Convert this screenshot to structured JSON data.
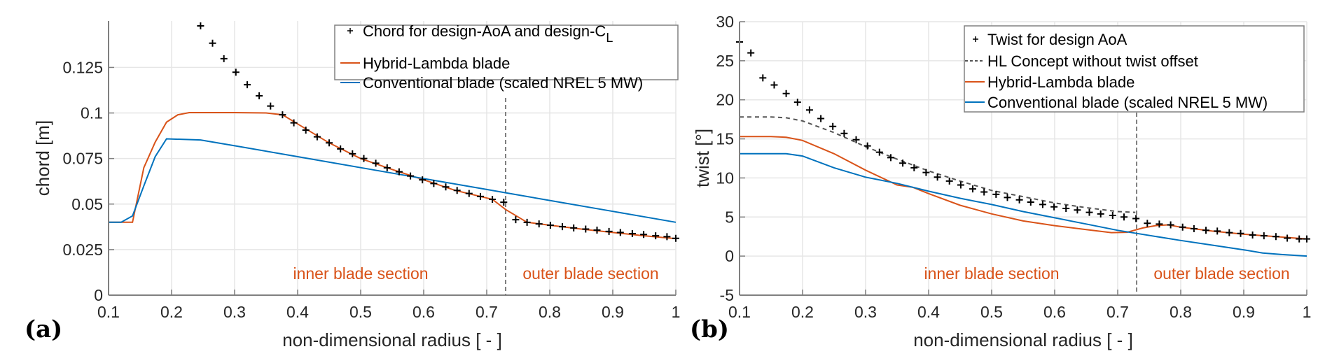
{
  "chart_data": [
    {
      "type": "line",
      "panel_label": "(a)",
      "title": "",
      "xlabel": "non-dimensional radius [ - ]",
      "ylabel": "chord [m]",
      "xlim": [
        0.1,
        1
      ],
      "ylim": [
        0,
        0.1505
      ],
      "xticks": [
        "0.1",
        "0.2",
        "0.3",
        "0.4",
        "0.5",
        "0.6",
        "0.7",
        "0.8",
        "0.9",
        "1"
      ],
      "xtick_values": [
        0.1,
        0.2,
        0.3,
        0.4,
        0.5,
        0.6,
        0.7,
        0.8,
        0.9,
        1
      ],
      "yticks": [
        "0",
        "0.025",
        "0.05",
        "0.075",
        "0.1",
        "0.125"
      ],
      "ytick_values": [
        0,
        0.025,
        0.05,
        0.075,
        0.1,
        0.125
      ],
      "grid": true,
      "legend_position": "top-right",
      "divider_x": 0.73,
      "annotations": [
        {
          "text": "inner blade section",
          "x": 0.5,
          "y": 0.0115
        },
        {
          "text": "outer blade section",
          "x": 0.865,
          "y": 0.0115
        }
      ],
      "series": [
        {
          "name": "Chord for design-AoA and design-C",
          "name_subscript": "L",
          "style": "marker",
          "color": "#000000",
          "x": [
            0.246,
            0.265,
            0.283,
            0.302,
            0.32,
            0.339,
            0.357,
            0.376,
            0.394,
            0.413,
            0.431,
            0.45,
            0.468,
            0.487,
            0.505,
            0.524,
            0.542,
            0.561,
            0.579,
            0.598,
            0.616,
            0.635,
            0.653,
            0.672,
            0.69,
            0.709,
            0.727,
            0.746,
            0.764,
            0.783,
            0.801,
            0.82,
            0.838,
            0.857,
            0.875,
            0.894,
            0.912,
            0.931,
            0.949,
            0.968,
            0.986,
            1.0
          ],
          "y": [
            0.1478,
            0.1383,
            0.1298,
            0.1224,
            0.1155,
            0.1094,
            0.1038,
            0.099,
            0.0946,
            0.0906,
            0.0869,
            0.0836,
            0.0803,
            0.0776,
            0.075,
            0.0724,
            0.0699,
            0.0677,
            0.0654,
            0.0633,
            0.0613,
            0.0594,
            0.0575,
            0.0558,
            0.0542,
            0.0526,
            0.051,
            0.0414,
            0.04,
            0.0391,
            0.0384,
            0.0376,
            0.0369,
            0.0363,
            0.0357,
            0.035,
            0.0344,
            0.0338,
            0.0333,
            0.0326,
            0.0321,
            0.0312
          ]
        },
        {
          "name": "Hybrid-Lambda blade",
          "style": "line",
          "color": "#d95319",
          "x": [
            0.1,
            0.12,
            0.138,
            0.156,
            0.174,
            0.192,
            0.21,
            0.228,
            0.3,
            0.35,
            0.376,
            0.4,
            0.45,
            0.5,
            0.55,
            0.6,
            0.65,
            0.709,
            0.73,
            0.764,
            0.8,
            0.85,
            0.9,
            0.95,
            1.0
          ],
          "y": [
            0.04,
            0.04,
            0.04,
            0.07,
            0.084,
            0.095,
            0.099,
            0.1002,
            0.1002,
            0.1,
            0.099,
            0.094,
            0.0836,
            0.075,
            0.069,
            0.0633,
            0.0575,
            0.0526,
            0.047,
            0.04,
            0.0384,
            0.0363,
            0.0344,
            0.0326,
            0.031
          ]
        },
        {
          "name": "Conventional blade (scaled NREL 5 MW)",
          "style": "line",
          "color": "#0072bd",
          "x": [
            0.1,
            0.12,
            0.138,
            0.156,
            0.174,
            0.192,
            0.246,
            0.3,
            0.4,
            0.5,
            0.6,
            0.7,
            0.73,
            0.8,
            0.9,
            1.0
          ],
          "y": [
            0.04,
            0.04,
            0.0435,
            0.06,
            0.076,
            0.0858,
            0.0852,
            0.082,
            0.076,
            0.07,
            0.064,
            0.058,
            0.0562,
            0.052,
            0.046,
            0.04
          ]
        }
      ]
    },
    {
      "type": "line",
      "panel_label": "(b)",
      "title": "",
      "xlabel": "non-dimensional radius [ - ]",
      "ylabel": "twist [°]",
      "xlim": [
        0.1,
        1
      ],
      "ylim": [
        -5,
        30
      ],
      "xticks": [
        "0.1",
        "0.2",
        "0.3",
        "0.4",
        "0.5",
        "0.6",
        "0.7",
        "0.8",
        "0.9",
        "1"
      ],
      "xtick_values": [
        0.1,
        0.2,
        0.3,
        0.4,
        0.5,
        0.6,
        0.7,
        0.8,
        0.9,
        1
      ],
      "yticks": [
        "-5",
        "0",
        "5",
        "10",
        "15",
        "20",
        "25",
        "30"
      ],
      "ytick_values": [
        -5,
        0,
        5,
        10,
        15,
        20,
        25,
        30
      ],
      "grid": true,
      "legend_position": "top-right",
      "divider_x": 0.73,
      "annotations": [
        {
          "text": "inner blade section",
          "x": 0.5,
          "y": -0.6
        },
        {
          "text": "outer blade section",
          "x": 0.865,
          "y": -0.6
        }
      ],
      "series": [
        {
          "name": "Twist for design AoA",
          "style": "marker",
          "color": "#000000",
          "x": [
            0.1,
            0.118,
            0.137,
            0.155,
            0.174,
            0.192,
            0.211,
            0.229,
            0.248,
            0.266,
            0.285,
            0.303,
            0.322,
            0.34,
            0.359,
            0.377,
            0.396,
            0.414,
            0.433,
            0.451,
            0.47,
            0.488,
            0.507,
            0.525,
            0.544,
            0.562,
            0.581,
            0.599,
            0.618,
            0.636,
            0.655,
            0.673,
            0.692,
            0.71,
            0.729,
            0.747,
            0.766,
            0.784,
            0.803,
            0.821,
            0.84,
            0.858,
            0.877,
            0.895,
            0.914,
            0.932,
            0.951,
            0.969,
            0.988,
            1.0
          ],
          "y": [
            27.4,
            26.0,
            22.8,
            21.9,
            20.8,
            19.7,
            18.7,
            17.6,
            16.6,
            15.7,
            14.9,
            14.1,
            13.3,
            12.6,
            11.9,
            11.3,
            10.7,
            10.1,
            9.6,
            9.1,
            8.6,
            8.2,
            7.9,
            7.5,
            7.2,
            6.9,
            6.6,
            6.3,
            6.1,
            5.9,
            5.6,
            5.4,
            5.2,
            5.0,
            4.8,
            4.2,
            4.1,
            4.0,
            3.7,
            3.5,
            3.3,
            3.2,
            3.0,
            2.9,
            2.7,
            2.6,
            2.5,
            2.3,
            2.2,
            2.2
          ]
        },
        {
          "name": "HL Concept without twist offset",
          "style": "dashed",
          "color": "#555555",
          "x": [
            0.1,
            0.15,
            0.174,
            0.2,
            0.25,
            0.3,
            0.35,
            0.4,
            0.45,
            0.5,
            0.55,
            0.6,
            0.65,
            0.7,
            0.728
          ],
          "y": [
            17.8,
            17.8,
            17.7,
            17.3,
            15.8,
            14.0,
            12.4,
            10.9,
            9.6,
            8.4,
            7.6,
            6.8,
            6.2,
            5.7,
            5.6
          ]
        },
        {
          "name": "Hybrid-Lambda blade",
          "style": "line",
          "color": "#d95319",
          "x": [
            0.1,
            0.15,
            0.174,
            0.2,
            0.25,
            0.3,
            0.35,
            0.375,
            0.4,
            0.45,
            0.5,
            0.55,
            0.6,
            0.65,
            0.69,
            0.715,
            0.74,
            0.76,
            0.78,
            0.8,
            0.85,
            0.9,
            0.95,
            1.0
          ],
          "y": [
            15.3,
            15.3,
            15.2,
            14.8,
            13.1,
            11.0,
            9.1,
            8.8,
            8.0,
            6.5,
            5.4,
            4.5,
            3.9,
            3.4,
            3.0,
            3.05,
            3.6,
            3.9,
            4.0,
            3.7,
            3.2,
            2.8,
            2.5,
            2.2
          ]
        },
        {
          "name": "Conventional blade (scaled NREL 5 MW)",
          "style": "line",
          "color": "#0072bd",
          "x": [
            0.1,
            0.15,
            0.174,
            0.2,
            0.25,
            0.3,
            0.35,
            0.4,
            0.45,
            0.5,
            0.55,
            0.6,
            0.65,
            0.7,
            0.73,
            0.8,
            0.85,
            0.9,
            0.93,
            0.96,
            1.0
          ],
          "y": [
            13.1,
            13.1,
            13.1,
            12.8,
            11.3,
            10.1,
            9.3,
            8.3,
            7.4,
            6.6,
            5.7,
            4.9,
            4.1,
            3.3,
            2.9,
            2.0,
            1.4,
            0.8,
            0.4,
            0.2,
            0.0
          ]
        }
      ]
    }
  ]
}
